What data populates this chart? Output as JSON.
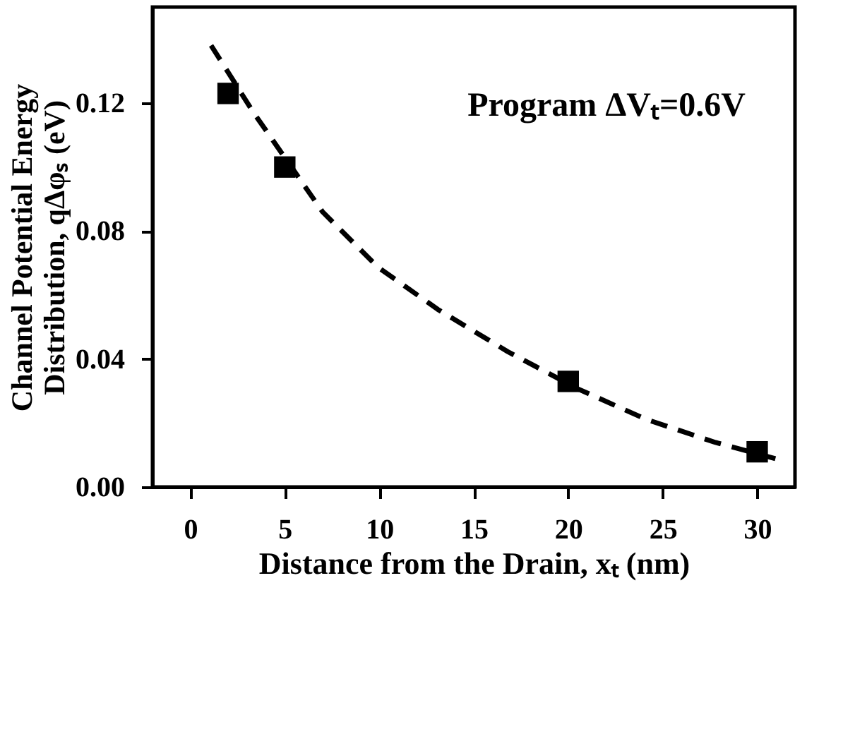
{
  "chart_data": {
    "type": "scatter",
    "xlabel": "Distance from the Drain, xₜ (nm)",
    "ylabel": [
      "Channel Potential Energy",
      "Distribution, qΔφₛ (eV)"
    ],
    "annotations": [
      "Program ΔVₜ=0.6V"
    ],
    "series": [
      {
        "color": "#000000",
        "marker": "square",
        "x": [
          2,
          5,
          20,
          30
        ],
        "values": [
          0.123,
          0.1,
          0.033,
          0.011
        ]
      },
      {
        "type": "line",
        "color": "#000000",
        "marker": "none",
        "line_style": "dashed",
        "x": [
          1.1,
          3.35,
          7.0,
          9.95,
          13.1,
          16.8,
          20.5,
          24.1,
          27.8,
          31.0
        ],
        "values": [
          0.138,
          0.117,
          0.086,
          0.0686,
          0.0555,
          0.0423,
          0.0307,
          0.0212,
          0.0139,
          0.0088
        ]
      }
    ],
    "xlim": [
      -2,
      32
    ],
    "xticks": [
      0,
      5,
      10,
      15,
      20,
      25,
      30
    ],
    "ylim": [
      0,
      0.15
    ],
    "yticks": [
      {
        "value": 0,
        "label": "0.00"
      },
      {
        "value": 0.04,
        "label": "0.04"
      },
      {
        "value": 0.08,
        "label": "0.08"
      },
      {
        "value": 0.12,
        "label": "0.12"
      }
    ],
    "grid": false
  }
}
